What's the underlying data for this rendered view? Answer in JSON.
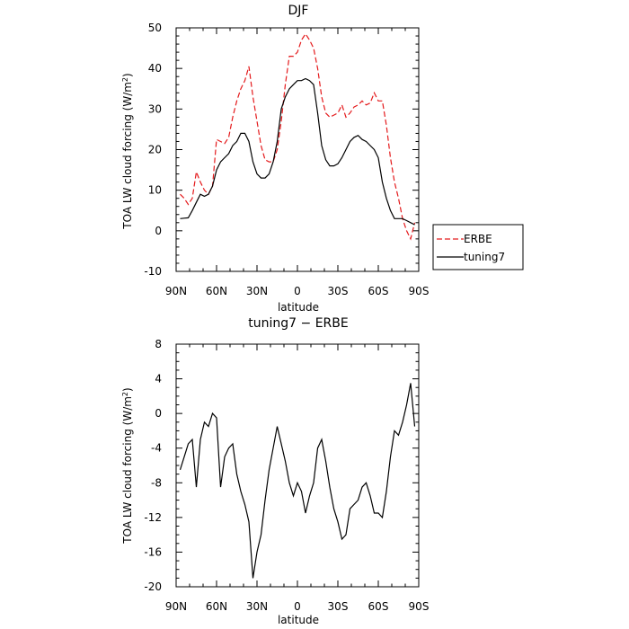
{
  "chart_data": [
    {
      "type": "line",
      "title": "DJF",
      "xlabel": "latitude",
      "ylabel": "TOA LW cloud forcing (W/m",
      "ylabel_sup": "2",
      "ylabel_end": ")",
      "x_ticks": [
        "90N",
        "60N",
        "30N",
        "0",
        "30S",
        "60S",
        "90S"
      ],
      "y_ticks": [
        "-10",
        "0",
        "10",
        "20",
        "30",
        "40",
        "50"
      ],
      "xlim": [
        -90,
        90
      ],
      "ylim": [
        -10,
        50
      ],
      "x": [
        -87,
        -84,
        -81,
        -78,
        -75,
        -72,
        -69,
        -66,
        -63,
        -60,
        -57,
        -54,
        -51,
        -48,
        -45,
        -42,
        -39,
        -36,
        -33,
        -30,
        -27,
        -24,
        -21,
        -18,
        -15,
        -12,
        -9,
        -6,
        -3,
        0,
        3,
        6,
        9,
        12,
        15,
        18,
        21,
        24,
        27,
        30,
        33,
        36,
        39,
        42,
        45,
        48,
        51,
        54,
        57,
        60,
        63,
        66,
        69,
        72,
        75,
        78,
        81,
        84,
        87
      ],
      "legend": {
        "entries": [
          "ERBE",
          "tuning7"
        ],
        "placement": "right"
      },
      "series": [
        {
          "name": "ERBE",
          "color": "#e41a1c",
          "dash": "dashed",
          "values": [
            9,
            8,
            6.5,
            8,
            14.5,
            12,
            10,
            9,
            11,
            22.5,
            22,
            21.5,
            23,
            28,
            32,
            35,
            37,
            40.5,
            33,
            27,
            21,
            17.5,
            17,
            17,
            20,
            27,
            36,
            43,
            43,
            44,
            47,
            48.5,
            47,
            45,
            40,
            33,
            29,
            28,
            28.5,
            29,
            31,
            28,
            29,
            30.5,
            31,
            32,
            31,
            31.5,
            34,
            32,
            32,
            26,
            18,
            12,
            8,
            3,
            0,
            -2,
            2
          ]
        },
        {
          "name": "tuning7",
          "color": "#000000",
          "dash": "solid",
          "values": [
            3,
            3.1,
            3.2,
            5,
            7,
            9,
            8.5,
            9,
            11,
            15,
            17,
            18,
            19,
            21,
            22,
            24,
            24,
            22,
            17,
            14,
            13,
            13,
            14,
            17,
            22,
            30,
            33,
            35,
            36,
            37,
            37,
            37.5,
            37,
            36,
            29,
            21,
            17.5,
            16,
            16,
            16.5,
            18,
            20,
            22,
            23,
            23.5,
            22.5,
            22,
            21,
            20,
            18,
            12,
            8,
            5,
            3,
            3,
            3,
            2.5,
            2,
            1.5
          ]
        }
      ]
    },
    {
      "type": "line",
      "title": "tuning7 − ERBE",
      "xlabel": "latitude",
      "ylabel": "TOA LW cloud forcing (W/m",
      "ylabel_sup": "2",
      "ylabel_end": ")",
      "x_ticks": [
        "90N",
        "60N",
        "30N",
        "0",
        "30S",
        "60S",
        "90S"
      ],
      "y_ticks": [
        "-20",
        "-16",
        "-12",
        "-8",
        "-4",
        "0",
        "4",
        "8"
      ],
      "xlim": [
        -90,
        90
      ],
      "ylim": [
        -20,
        8
      ],
      "x": [
        -87,
        -84,
        -81,
        -78,
        -75,
        -72,
        -69,
        -66,
        -63,
        -60,
        -57,
        -54,
        -51,
        -48,
        -45,
        -42,
        -39,
        -36,
        -33,
        -30,
        -27,
        -24,
        -21,
        -18,
        -15,
        -12,
        -9,
        -6,
        -3,
        0,
        3,
        6,
        9,
        12,
        15,
        18,
        21,
        24,
        27,
        30,
        33,
        36,
        39,
        42,
        45,
        48,
        51,
        54,
        57,
        60,
        63,
        66,
        69,
        72,
        75,
        78,
        81,
        84,
        87
      ],
      "series": [
        {
          "name": "",
          "color": "#000000",
          "dash": "solid",
          "values": [
            -6.5,
            -5,
            -3.5,
            -3,
            -8.5,
            -3,
            -1,
            -1.5,
            0,
            -0.5,
            -8.5,
            -5,
            -4,
            -3.5,
            -7,
            -9,
            -10.5,
            -12.5,
            -19,
            -16,
            -14,
            -10,
            -6.5,
            -4,
            -1.5,
            -3.5,
            -5.5,
            -8,
            -9.5,
            -8,
            -9,
            -11.5,
            -9.5,
            -8,
            -4,
            -3,
            -5.5,
            -8.5,
            -11,
            -12.5,
            -14.5,
            -14,
            -11,
            -10.5,
            -10,
            -8.5,
            -8,
            -9.5,
            -11.5,
            -11.5,
            -12,
            -9,
            -5,
            -2,
            -2.5,
            -1,
            1,
            3.5,
            -1.5
          ]
        }
      ]
    }
  ]
}
